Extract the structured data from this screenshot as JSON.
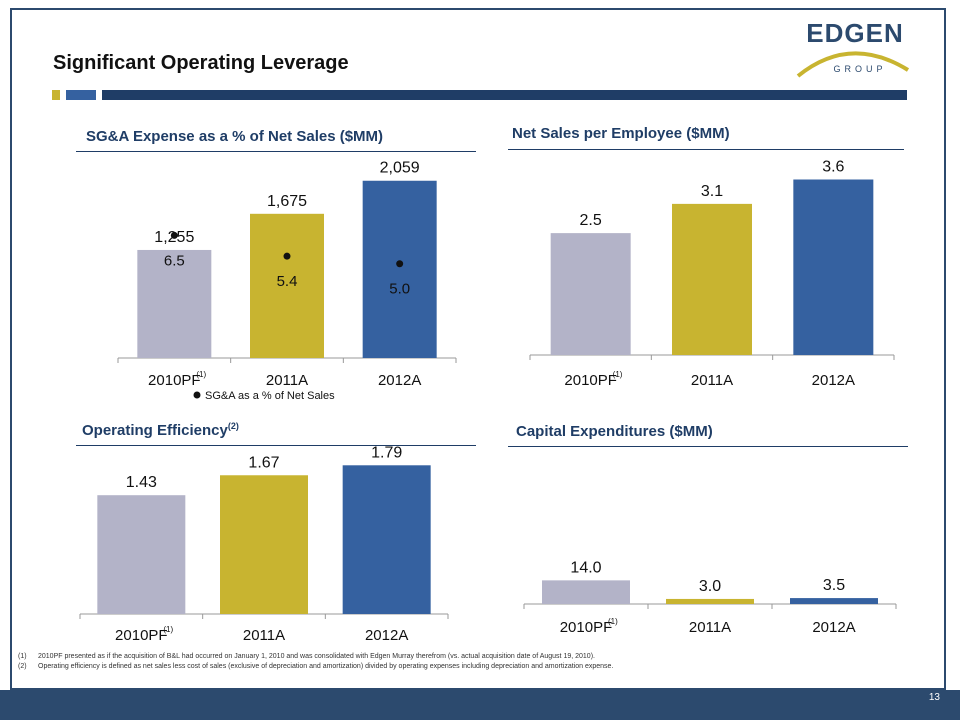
{
  "page": {
    "title": "Significant Operating Leverage",
    "page_number": "13",
    "logo": {
      "name": "EDGEN",
      "sub": "GROUP"
    },
    "footnotes": [
      {
        "mark": "(1)",
        "text": "2010PF presented as if the acquisition of B&L had occurred on January 1, 2010 and was consolidated with Edgen Murray therefrom (vs. actual acquisition date of August 19, 2010)."
      },
      {
        "mark": "(2)",
        "text": "Operating efficiency is defined as net sales less cost of sales (exclusive of depreciation and amortization) divided by operating expenses including depreciation and amortization expense."
      }
    ]
  },
  "colors": {
    "gray": "#b3b3c8",
    "gold": "#c8b430",
    "blue": "#3561a0",
    "navy": "#1f3d66",
    "dark": "#2c4a6e"
  },
  "chart_data": [
    {
      "id": "sga",
      "type": "bar",
      "title": "SG&A Expense as a % of Net Sales ($MM)",
      "categories": [
        "2010PF",
        "2011A",
        "2012A"
      ],
      "category_sups": [
        "(1)",
        "",
        ""
      ],
      "values": [
        1255,
        1675,
        2059
      ],
      "value_labels": [
        "1,255",
        "1,675",
        "2,059"
      ],
      "ylim": [
        0,
        2300
      ],
      "overlay": {
        "name": "SG&A as a % of Net Sales",
        "values": [
          6.5,
          5.4,
          5.0
        ],
        "labels": [
          "6.5",
          "5.4",
          "5.0"
        ],
        "ylim": [
          0,
          10.5
        ]
      },
      "legend_label": "SG&A as a % of Net Sales",
      "legend": "bottom"
    },
    {
      "id": "nspe",
      "type": "bar",
      "title": "Net Sales per Employee ($MM)",
      "categories": [
        "2010PF",
        "2011A",
        "2012A"
      ],
      "category_sups": [
        "(1)",
        "",
        ""
      ],
      "values": [
        2.5,
        3.1,
        3.6
      ],
      "value_labels": [
        "2.5",
        "3.1",
        "3.6"
      ],
      "ylim": [
        0,
        4.0
      ]
    },
    {
      "id": "opeff",
      "type": "bar",
      "title": "Operating Efficiency",
      "title_sup": "(2)",
      "categories": [
        "2010PF",
        "2011A",
        "2012A"
      ],
      "category_sups": [
        "(1)",
        "",
        ""
      ],
      "values": [
        1.43,
        1.67,
        1.79
      ],
      "value_labels": [
        "1.43",
        "1.67",
        "1.79"
      ],
      "ylim": [
        0,
        1.95
      ]
    },
    {
      "id": "capex",
      "type": "bar",
      "title": "Capital Expenditures ($MM)",
      "categories": [
        "2010PF",
        "2011A",
        "2012A"
      ],
      "category_sups": [
        "(1)",
        "",
        ""
      ],
      "values": [
        14.0,
        3.0,
        3.5
      ],
      "value_labels": [
        "14.0",
        "3.0",
        "3.5"
      ],
      "ylim": [
        0,
        90
      ]
    }
  ]
}
